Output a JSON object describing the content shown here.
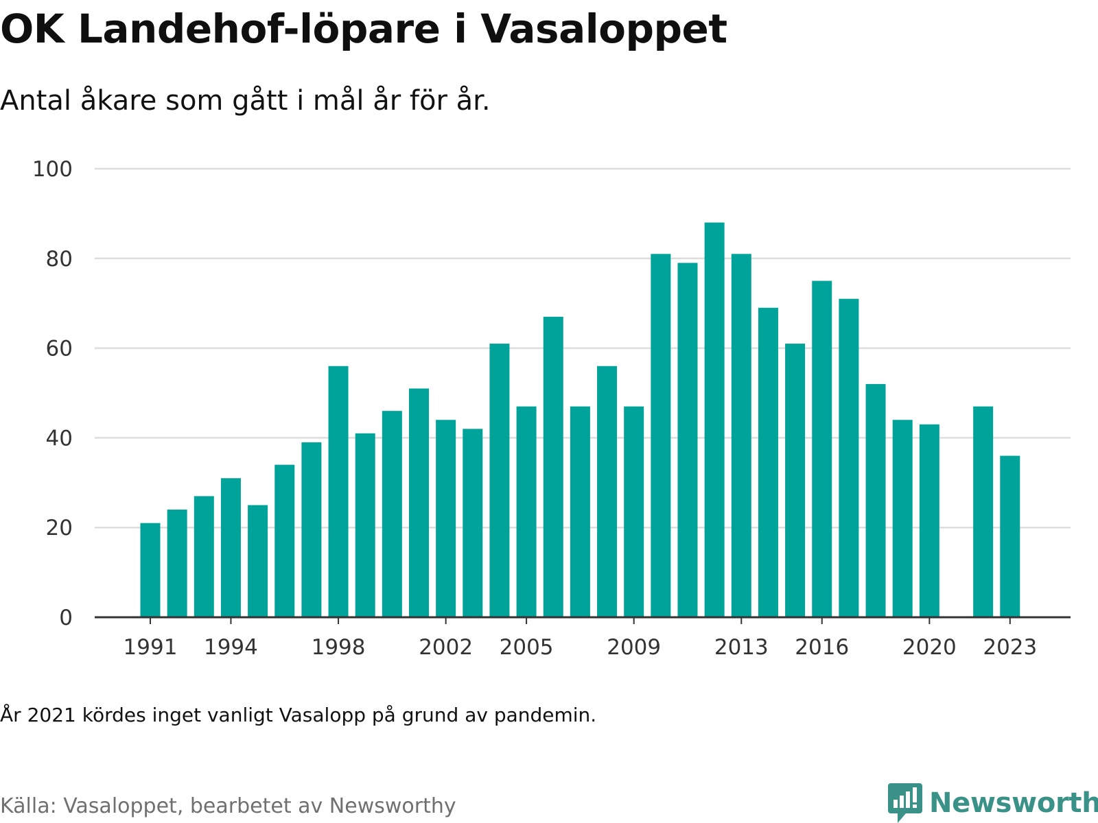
{
  "header": {
    "title": "OK Landehof-löpare i Vasaloppet",
    "subtitle": "Antal åkare som gått i mål år för år."
  },
  "footer": {
    "note": "År 2021 kördes inget vanligt Vasalopp på grund av pandemin.",
    "source": "Källa: Vasaloppet, bearbetet av Newsworthy",
    "brand": "Newsworthy",
    "brand_icon": "newsworthy-logo-icon"
  },
  "colors": {
    "bar": "#00a399",
    "grid": "#dddddd",
    "axis": "#333333",
    "brand": "#3a9188"
  },
  "chart_data": {
    "type": "bar",
    "categories": [
      1991,
      1992,
      1993,
      1994,
      1995,
      1996,
      1997,
      1998,
      1999,
      2000,
      2001,
      2002,
      2003,
      2004,
      2005,
      2006,
      2007,
      2008,
      2009,
      2010,
      2011,
      2012,
      2013,
      2014,
      2015,
      2016,
      2017,
      2018,
      2019,
      2020,
      2021,
      2022,
      2023
    ],
    "values": [
      21,
      24,
      27,
      31,
      25,
      34,
      39,
      56,
      41,
      46,
      51,
      44,
      42,
      61,
      47,
      67,
      47,
      56,
      47,
      81,
      79,
      88,
      81,
      69,
      61,
      75,
      71,
      52,
      44,
      43,
      null,
      47,
      36
    ],
    "x_tick_labels": [
      "1991",
      "1994",
      "1998",
      "2002",
      "2005",
      "2009",
      "2013",
      "2016",
      "2020",
      "2023"
    ],
    "y_ticks": [
      "0",
      "20",
      "40",
      "60",
      "80",
      "100"
    ],
    "ylim": [
      0,
      100
    ],
    "grid": true,
    "legend": "none",
    "xlabel": "",
    "ylabel": ""
  }
}
